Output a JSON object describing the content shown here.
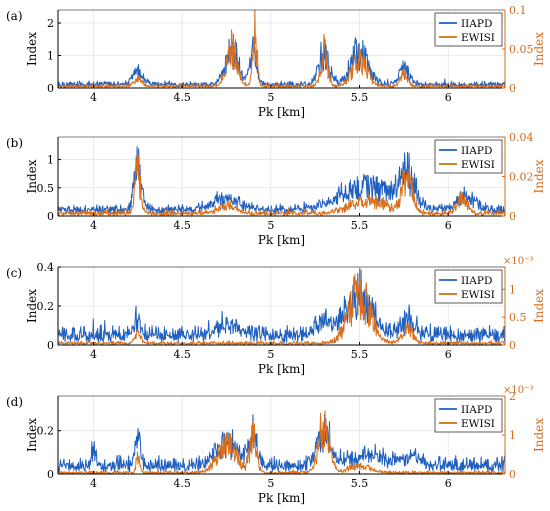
{
  "colors": {
    "iiapd": "#1f5fbf",
    "ewisi": "#c8711a",
    "ewisi_accent": "#f26a1b",
    "axis": "#000000",
    "grid": "#e4e4e4",
    "right_axis": "#d06b1e"
  },
  "chart_data": [
    {
      "type": "line",
      "panel_label": "(a)",
      "xlabel": "Pk [km]",
      "ylabel_left": "Index",
      "ylabel_right": "Index",
      "xlim": [
        3.8,
        6.32
      ],
      "x_ticks": [
        "4",
        "4.5",
        "5",
        "5.5",
        "6"
      ],
      "y_left_lim": [
        0,
        2.4
      ],
      "y_left_ticks": [
        "0",
        "1",
        "2"
      ],
      "y_right_lim": [
        0,
        0.1
      ],
      "y_right_ticks": [
        "0",
        "0.05",
        "0.1"
      ],
      "y_right_multiplier": "",
      "grid": true,
      "legend_position": "top-right",
      "series": [
        {
          "name": "IIAPD",
          "axis": "left",
          "baseline": 0.08,
          "noise": 0.12,
          "peaks": [
            [
              4.25,
              0.5,
              0.03
            ],
            [
              4.78,
              1.4,
              0.035
            ],
            [
              4.9,
              1.2,
              0.02
            ],
            [
              5.3,
              1.2,
              0.03
            ],
            [
              5.5,
              1.3,
              0.05
            ],
            [
              5.75,
              0.6,
              0.03
            ]
          ]
        },
        {
          "name": "EWISI",
          "axis": "right",
          "baseline": 0.002,
          "noise": 0.003,
          "peaks": [
            [
              4.25,
              0.012,
              0.02
            ],
            [
              4.78,
              0.06,
              0.03
            ],
            [
              4.91,
              0.09,
              0.012
            ],
            [
              5.3,
              0.055,
              0.02
            ],
            [
              5.5,
              0.045,
              0.04
            ],
            [
              5.75,
              0.02,
              0.02
            ]
          ]
        }
      ]
    },
    {
      "type": "line",
      "panel_label": "(b)",
      "xlabel": "Pk [km]",
      "ylabel_left": "Index",
      "ylabel_right": "Index",
      "xlim": [
        3.8,
        6.32
      ],
      "x_ticks": [
        "4",
        "4.5",
        "5",
        "5.5",
        "6"
      ],
      "y_left_lim": [
        0,
        1.4
      ],
      "y_left_ticks": [
        "0",
        "0.5",
        "1"
      ],
      "y_right_lim": [
        0,
        0.04
      ],
      "y_right_ticks": [
        "0",
        "0.02",
        "0.04"
      ],
      "y_right_multiplier": "",
      "grid": true,
      "legend_position": "top-right",
      "series": [
        {
          "name": "IIAPD",
          "axis": "left",
          "baseline": 0.1,
          "noise": 0.1,
          "peaks": [
            [
              4.25,
              1.0,
              0.02
            ],
            [
              4.75,
              0.25,
              0.08
            ],
            [
              5.55,
              0.55,
              0.15
            ],
            [
              5.77,
              0.7,
              0.04
            ],
            [
              6.1,
              0.3,
              0.05
            ]
          ]
        },
        {
          "name": "EWISI",
          "axis": "right",
          "baseline": 0.001,
          "noise": 0.002,
          "peaks": [
            [
              4.25,
              0.028,
              0.015
            ],
            [
              4.75,
              0.005,
              0.05
            ],
            [
              5.55,
              0.008,
              0.1
            ],
            [
              5.77,
              0.022,
              0.03
            ],
            [
              6.08,
              0.008,
              0.03
            ]
          ]
        }
      ]
    },
    {
      "type": "line",
      "panel_label": "(c)",
      "xlabel": "Pk [km]",
      "ylabel_left": "Index",
      "ylabel_right": "Index",
      "xlim": [
        3.8,
        6.32
      ],
      "x_ticks": [
        "4",
        "4.5",
        "5",
        "5.5",
        "6"
      ],
      "y_left_lim": [
        0,
        0.4
      ],
      "y_left_ticks": [
        "0",
        "0.2",
        "0.4"
      ],
      "y_right_lim": [
        0,
        1.4
      ],
      "y_right_ticks": [
        "0",
        "0.5",
        "1"
      ],
      "y_right_multiplier": "×10⁻³",
      "grid": true,
      "legend_position": "top-right",
      "series": [
        {
          "name": "IIAPD",
          "axis": "left",
          "baseline": 0.04,
          "noise": 0.06,
          "peaks": [
            [
              4.25,
              0.1,
              0.02
            ],
            [
              4.75,
              0.08,
              0.06
            ],
            [
              5.3,
              0.08,
              0.05
            ],
            [
              5.5,
              0.25,
              0.07
            ],
            [
              5.77,
              0.12,
              0.04
            ]
          ]
        },
        {
          "name": "EWISI",
          "axis": "right",
          "baseline": 0.02,
          "noise": 0.05,
          "peaks": [
            [
              4.25,
              0.2,
              0.02
            ],
            [
              5.5,
              1.1,
              0.06
            ],
            [
              5.77,
              0.35,
              0.03
            ]
          ]
        }
      ]
    },
    {
      "type": "line",
      "panel_label": "(d)",
      "xlabel": "Pk [km]",
      "ylabel_left": "Index",
      "ylabel_right": "Index",
      "xlim": [
        3.8,
        6.32
      ],
      "x_ticks": [
        "4",
        "4.5",
        "5",
        "5.5",
        "6"
      ],
      "y_left_lim": [
        0,
        0.36
      ],
      "y_left_ticks": [
        "0",
        "0.2"
      ],
      "y_right_lim": [
        0,
        2
      ],
      "y_right_ticks": [
        "0",
        "1",
        "2"
      ],
      "y_right_multiplier": "×10⁻³",
      "grid": true,
      "legend_position": "top-right",
      "series": [
        {
          "name": "IIAPD",
          "axis": "left",
          "baseline": 0.03,
          "noise": 0.05,
          "peaks": [
            [
              4.0,
              0.1,
              0.01
            ],
            [
              4.25,
              0.18,
              0.015
            ],
            [
              4.75,
              0.14,
              0.06
            ],
            [
              4.9,
              0.16,
              0.025
            ],
            [
              5.3,
              0.18,
              0.04
            ],
            [
              5.55,
              0.06,
              0.1
            ],
            [
              5.8,
              0.05,
              0.05
            ]
          ]
        },
        {
          "name": "EWISI",
          "axis": "right",
          "baseline": 0.02,
          "noise": 0.06,
          "peaks": [
            [
              4.25,
              0.5,
              0.01
            ],
            [
              4.75,
              0.9,
              0.05
            ],
            [
              4.9,
              1.1,
              0.02
            ],
            [
              5.3,
              1.6,
              0.03
            ],
            [
              5.5,
              0.2,
              0.06
            ]
          ]
        }
      ]
    }
  ]
}
